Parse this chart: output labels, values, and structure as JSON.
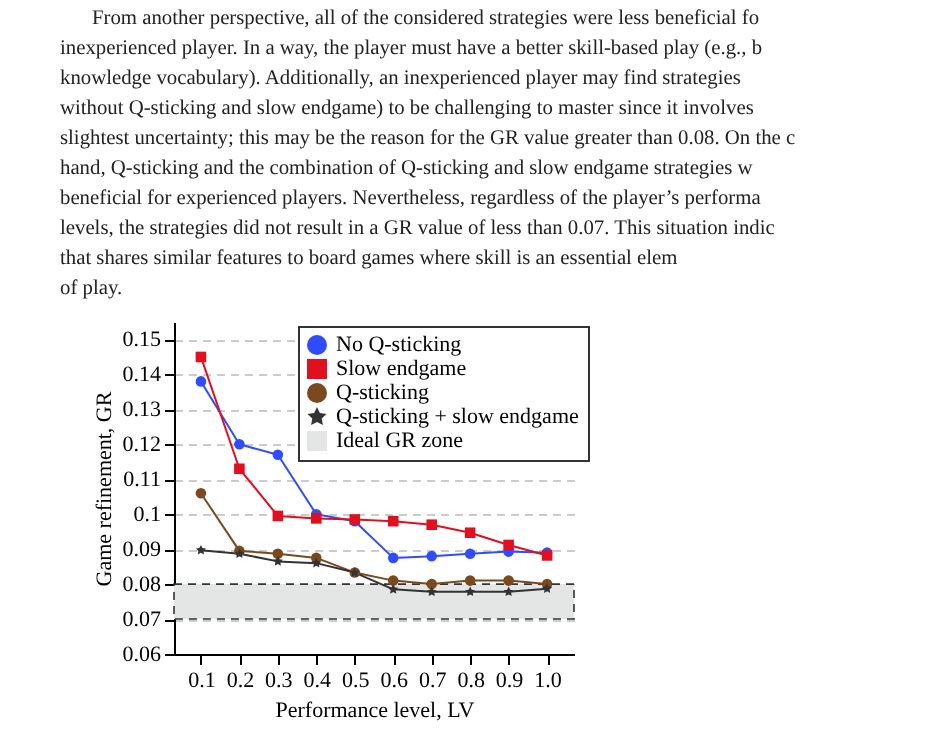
{
  "chart_data": {
    "type": "line",
    "xlabel": "Performance level, LV",
    "ylabel": "Game refinement, GR",
    "annotations": [
      "From another perspective, all of the considered strategies were less beneficial fo",
      "inexperienced player. In a way, the player must have a better skill-based play (e.g., b",
      "knowledge vocabulary). Additionally, an inexperienced player may find strategies",
      "without Q-sticking and slow endgame) to be challenging to master since it involves",
      "slightest uncertainty; this may be the reason for the GR value greater than 0.08. On the c",
      "hand, Q-sticking and the combination of Q-sticking and slow endgame strategies w",
      "beneficial for experienced players. Nevertheless, regardless of the player’s performa",
      "levels, the strategies did not result in a GR value of less than 0.07. This situation indic",
      "that shares similar features to board games where skill is an essential elem",
      "of play."
    ],
    "x": [
      0.1,
      0.2,
      0.3,
      0.4,
      0.5,
      0.6,
      0.7,
      0.8,
      0.9,
      1.0
    ],
    "series": [
      {
        "name": "No Q-sticking",
        "color": "#2f4cff",
        "marker": "circle",
        "values": [
          0.138,
          0.12,
          0.117,
          0.1,
          0.098,
          0.0875,
          0.088,
          0.0887,
          0.0893,
          0.089
        ]
      },
      {
        "name": "Slow endgame",
        "color": "#e0101e",
        "marker": "square",
        "values": [
          0.145,
          0.113,
          0.0995,
          0.0988,
          0.0985,
          0.098,
          0.097,
          0.0947,
          0.0912,
          0.0882
        ]
      },
      {
        "name": "Q-sticking",
        "color": "#7a4a1e",
        "marker": "circle",
        "values": [
          0.106,
          0.0895,
          0.0887,
          0.0875,
          0.0833,
          0.081,
          0.08,
          0.081,
          0.081,
          0.08
        ]
      },
      {
        "name": "Q-sticking + slow endgame",
        "color": "#333333",
        "marker": "star",
        "values": [
          0.0897,
          0.0887,
          0.0865,
          0.086,
          0.0833,
          0.0785,
          0.0778,
          0.0778,
          0.0778,
          0.0787
        ]
      }
    ],
    "bands": [
      {
        "axis": "y",
        "from": 0.07,
        "to": 0.08,
        "label": "Ideal GR zone",
        "color": "#e4e6e6"
      }
    ],
    "xlim": [
      0.03,
      1.07
    ],
    "xticks": [
      0.1,
      0.2,
      0.3,
      0.4,
      0.5,
      0.6,
      0.7,
      0.8,
      0.9,
      {
        "value": 1.0,
        "label": "1.0"
      }
    ],
    "ylim": [
      0.06,
      0.155
    ],
    "yticks": [
      0.06,
      0.07,
      0.08,
      0.09,
      0.1,
      0.11,
      0.12,
      0.13,
      0.14,
      0.15
    ],
    "grid": "y",
    "legend": "top right"
  }
}
